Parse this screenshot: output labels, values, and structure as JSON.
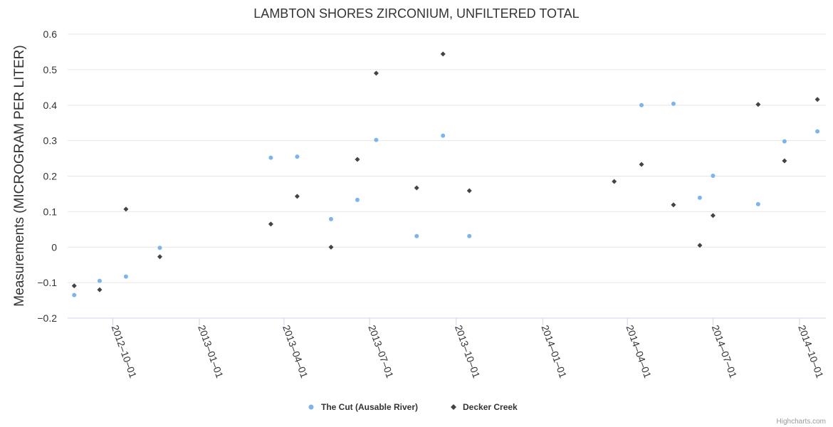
{
  "chart_data": {
    "type": "scatter",
    "title": "LAMBTON SHORES ZIRCONIUM, UNFILTERED TOTAL",
    "xlabel": "",
    "ylabel": "Measurements (MICROGRAM PER LITER)",
    "ylim": [
      -0.2,
      0.6
    ],
    "yticks": [
      -0.2,
      -0.1,
      0,
      0.1,
      0.2,
      0.3,
      0.4,
      0.5,
      0.6
    ],
    "ytick_labels": [
      "−0.2",
      "−0.1",
      "0",
      "0.1",
      "0.2",
      "0.3",
      "0.4",
      "0.5",
      "0.6"
    ],
    "xlim": [
      "2012-08-14",
      "2014-10-29"
    ],
    "xticks": [
      "2012-10-01",
      "2013-01-01",
      "2013-04-01",
      "2013-07-01",
      "2013-10-01",
      "2014-01-01",
      "2014-04-01",
      "2014-07-01",
      "2014-10-01"
    ],
    "grid": true,
    "legend_position": "bottom-center",
    "series": [
      {
        "name": "The Cut (Ausable River)",
        "color": "#7cb5ec",
        "marker": "circle",
        "points": [
          [
            "2012-08-21",
            -0.135
          ],
          [
            "2012-09-17",
            -0.095
          ],
          [
            "2012-10-15",
            -0.083
          ],
          [
            "2012-11-20",
            -0.002
          ],
          [
            "2013-03-18",
            0.252
          ],
          [
            "2013-04-15",
            0.255
          ],
          [
            "2013-05-21",
            0.079
          ],
          [
            "2013-06-18",
            0.133
          ],
          [
            "2013-07-08",
            0.302
          ],
          [
            "2013-08-20",
            0.031
          ],
          [
            "2013-09-17",
            0.314
          ],
          [
            "2013-10-15",
            0.031
          ],
          [
            "2014-04-16",
            0.4
          ],
          [
            "2014-05-20",
            0.404
          ],
          [
            "2014-06-17",
            0.139
          ],
          [
            "2014-07-01",
            0.201
          ],
          [
            "2014-08-18",
            0.121
          ],
          [
            "2014-09-15",
            0.298
          ],
          [
            "2014-10-20",
            0.326
          ]
        ]
      },
      {
        "name": "Decker Creek",
        "color": "#434348",
        "marker": "diamond",
        "points": [
          [
            "2012-08-21",
            -0.109
          ],
          [
            "2012-09-17",
            -0.12
          ],
          [
            "2012-10-15",
            0.107
          ],
          [
            "2012-11-20",
            -0.027
          ],
          [
            "2013-03-18",
            0.065
          ],
          [
            "2013-04-15",
            0.143
          ],
          [
            "2013-05-21",
            0.0
          ],
          [
            "2013-06-18",
            0.247
          ],
          [
            "2013-07-08",
            0.49
          ],
          [
            "2013-08-20",
            0.167
          ],
          [
            "2013-09-17",
            0.544
          ],
          [
            "2013-10-15",
            0.159
          ],
          [
            "2014-03-18",
            0.185
          ],
          [
            "2014-04-16",
            0.233
          ],
          [
            "2014-05-20",
            0.119
          ],
          [
            "2014-06-17",
            0.005
          ],
          [
            "2014-07-01",
            0.089
          ],
          [
            "2014-08-18",
            0.402
          ],
          [
            "2014-09-15",
            0.243
          ],
          [
            "2014-10-20",
            0.416
          ]
        ]
      }
    ],
    "credits": "Highcharts.com"
  }
}
